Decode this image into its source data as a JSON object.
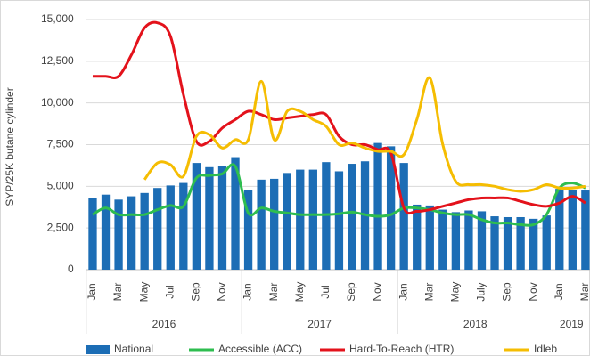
{
  "chart_data": {
    "type": "bar-line",
    "y_label": "SYP/25K butane cylinder",
    "categories": [
      "Jan",
      null,
      "Mar",
      null,
      "May",
      null,
      "Jul",
      null,
      "Sep",
      null,
      "Nov",
      null,
      "Jan",
      null,
      "Mar",
      null,
      "May",
      null,
      "Jul",
      null,
      "Sep",
      null,
      "Nov",
      null,
      "Jan",
      null,
      "Mar",
      null,
      "May",
      null,
      "July",
      null,
      "Sep",
      null,
      "Nov",
      null,
      "Jan",
      null,
      "Mar"
    ],
    "years": [
      "2016",
      "2017",
      "2018",
      "2019"
    ],
    "ylim": [
      0,
      15000
    ],
    "yticks": [
      0,
      {
        "value": 2500,
        "label": "2,500"
      },
      {
        "value": 5000,
        "label": "5,000"
      },
      {
        "value": 7500,
        "label": "7,500"
      },
      {
        "value": 10000,
        "label": "10,000"
      },
      {
        "value": 12500,
        "label": "12,500"
      },
      {
        "value": 15000,
        "label": "15,000"
      }
    ],
    "grid": true,
    "legend": "bottom",
    "series": [
      {
        "name": "National",
        "kind": "bar",
        "color": "#1c6db5",
        "values": [
          4300,
          4500,
          4200,
          4400,
          4600,
          4900,
          5050,
          5200,
          6400,
          6150,
          6200,
          6750,
          4800,
          5400,
          5450,
          5800,
          6000,
          6000,
          6450,
          5900,
          6350,
          6500,
          7600,
          7400,
          6400,
          3900,
          3850,
          3600,
          3450,
          3550,
          3500,
          3200,
          3150,
          3150,
          3050,
          3250,
          4850,
          4800,
          4750
        ]
      },
      {
        "name": "Accessible (ACC)",
        "kind": "line",
        "color": "#2ebd4f",
        "values": [
          3300,
          3700,
          3300,
          3300,
          3300,
          3600,
          3850,
          3800,
          5500,
          5650,
          5750,
          6200,
          3400,
          3700,
          3500,
          3400,
          3300,
          3300,
          3300,
          3350,
          3450,
          3300,
          3200,
          3300,
          3700,
          3700,
          3600,
          3400,
          3300,
          3300,
          3000,
          2800,
          2800,
          2700,
          2700,
          3300,
          4900,
          5200,
          4900
        ]
      },
      {
        "name": "Hard-To-Reach (HTR)",
        "kind": "line",
        "color": "#e3121b",
        "values": [
          11600,
          11600,
          11600,
          12900,
          14500,
          14800,
          14000,
          10500,
          7700,
          7700,
          8500,
          9000,
          9500,
          9300,
          9000,
          9100,
          9200,
          9300,
          9300,
          8000,
          7500,
          7500,
          7200,
          7000,
          3700,
          3500,
          3600,
          3800,
          4000,
          4200,
          4300,
          4300,
          4300,
          4100,
          3900,
          3800,
          4000,
          4400,
          4000
        ]
      },
      {
        "name": "Idleb",
        "kind": "line",
        "color": "#f5bd02",
        "values": [
          null,
          null,
          null,
          null,
          5400,
          6400,
          6300,
          5600,
          8000,
          8100,
          7300,
          7800,
          7800,
          11300,
          7800,
          9500,
          9500,
          9000,
          8600,
          7500,
          7600,
          7300,
          7100,
          7100,
          6900,
          9000,
          11500,
          7500,
          5300,
          5100,
          5100,
          5000,
          4800,
          4700,
          4800,
          5100,
          4900,
          4900,
          5000
        ]
      }
    ]
  }
}
